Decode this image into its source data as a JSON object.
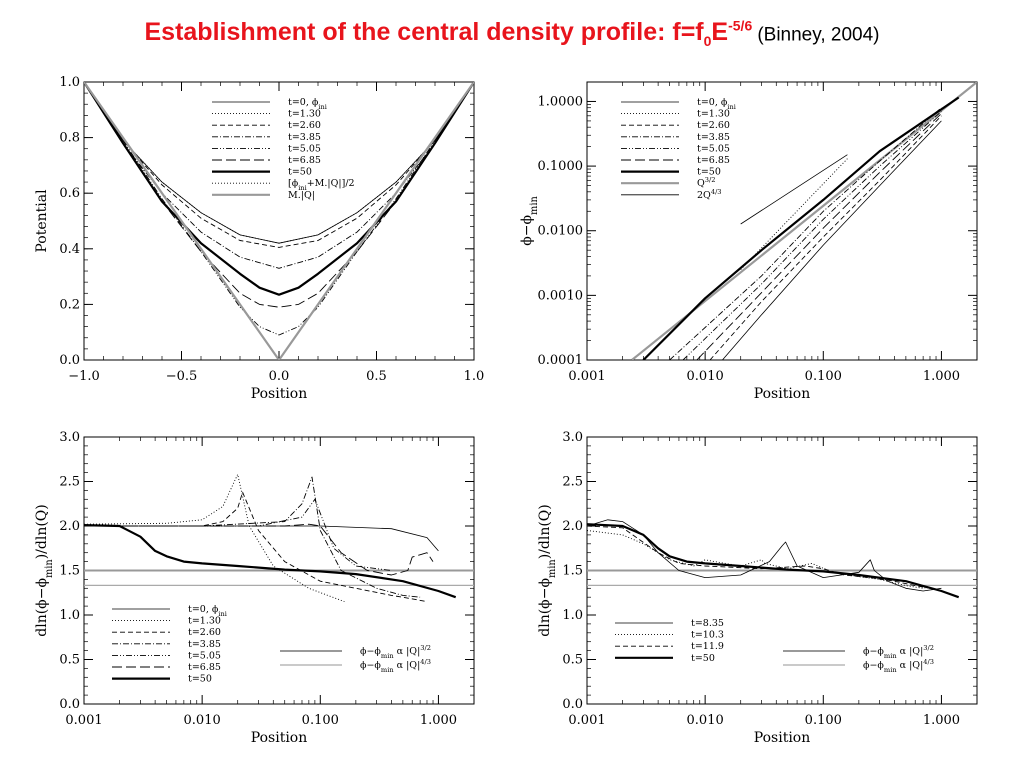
{
  "title": {
    "main": "Establishment of the central density profile: f=f",
    "sub": "0",
    "mid": "E",
    "sup": "-5/6",
    "cite": "(Binney, 2004)"
  },
  "chart_data": [
    {
      "id": "tl",
      "type": "line",
      "xscale": "linear",
      "yscale": "linear",
      "xlim": [
        -1,
        1
      ],
      "ylim": [
        0,
        1
      ],
      "xticks": [
        -1,
        -0.5,
        0,
        0.5,
        1
      ],
      "xticklabels": [
        "−1.0",
        "−0.5",
        "0.0",
        "0.5",
        "1.0"
      ],
      "yticks": [
        0,
        0.2,
        0.4,
        0.6,
        0.8,
        1.0
      ],
      "yticklabels": [
        "0.0",
        "0.2",
        "0.4",
        "0.6",
        "0.8",
        "1.0"
      ],
      "xlabel": "Position",
      "ylabel": "Potential",
      "legend": {
        "placement": "top-center",
        "entries": [
          {
            "label": "t=0, ϕini",
            "style": "thin"
          },
          {
            "label": "t=1.30",
            "style": "dot"
          },
          {
            "label": "t=2.60",
            "style": "dash"
          },
          {
            "label": "t=3.85",
            "style": "dashdot"
          },
          {
            "label": "t=5.05",
            "style": "dashdotdot"
          },
          {
            "label": "t=6.85",
            "style": "longdash"
          },
          {
            "label": "t=50",
            "style": "bold"
          },
          {
            "label": "[ϕini+M.|Q|]/2",
            "style": "dot"
          },
          {
            "label": "M.|Q|",
            "style": "gray"
          }
        ]
      },
      "series": [
        {
          "style": "thin",
          "x": [
            -1,
            -0.8,
            -0.6,
            -0.4,
            -0.2,
            0,
            0.2,
            0.4,
            0.6,
            0.8,
            1
          ],
          "y": [
            1.0,
            0.79,
            0.64,
            0.53,
            0.45,
            0.42,
            0.45,
            0.53,
            0.64,
            0.79,
            1.0
          ]
        },
        {
          "style": "dot",
          "x": [
            -1,
            -0.8,
            -0.6,
            -0.4,
            -0.2,
            0,
            0.2,
            0.4,
            0.6,
            0.8,
            1
          ],
          "y": [
            1.0,
            0.79,
            0.64,
            0.53,
            0.45,
            0.42,
            0.45,
            0.53,
            0.64,
            0.79,
            1.0
          ]
        },
        {
          "style": "dash",
          "x": [
            -1,
            -0.8,
            -0.6,
            -0.4,
            -0.2,
            0,
            0.2,
            0.4,
            0.6,
            0.8,
            1
          ],
          "y": [
            1.0,
            0.79,
            0.63,
            0.51,
            0.43,
            0.405,
            0.43,
            0.51,
            0.63,
            0.79,
            1.0
          ]
        },
        {
          "style": "dashdot",
          "x": [
            -1,
            -0.8,
            -0.6,
            -0.4,
            -0.2,
            0,
            0.2,
            0.4,
            0.6,
            0.8,
            1
          ],
          "y": [
            1.0,
            0.78,
            0.6,
            0.46,
            0.37,
            0.33,
            0.37,
            0.46,
            0.6,
            0.78,
            1.0
          ]
        },
        {
          "style": "longdash",
          "x": [
            -1,
            -0.8,
            -0.6,
            -0.4,
            -0.2,
            -0.1,
            0,
            0.1,
            0.2,
            0.4,
            0.6,
            0.8,
            1
          ],
          "y": [
            1.0,
            0.78,
            0.57,
            0.39,
            0.24,
            0.2,
            0.19,
            0.2,
            0.24,
            0.39,
            0.57,
            0.78,
            1.0
          ]
        },
        {
          "style": "dashdotdot",
          "x": [
            -1,
            -0.8,
            -0.6,
            -0.4,
            -0.2,
            -0.1,
            0,
            0.1,
            0.2,
            0.4,
            0.6,
            0.8,
            1
          ],
          "y": [
            1.0,
            0.79,
            0.58,
            0.39,
            0.19,
            0.12,
            0.09,
            0.12,
            0.19,
            0.39,
            0.58,
            0.79,
            1.0
          ]
        },
        {
          "style": "dot",
          "x": [
            -1,
            -0.5,
            -0.2,
            -0.05,
            0,
            0.05,
            0.2,
            0.5,
            1
          ],
          "y": [
            1.0,
            0.5,
            0.2,
            0.05,
            0.0,
            0.05,
            0.2,
            0.5,
            1.0
          ]
        },
        {
          "style": "bold",
          "x": [
            -1,
            -0.8,
            -0.6,
            -0.4,
            -0.2,
            -0.1,
            0,
            0.1,
            0.2,
            0.4,
            0.6,
            0.8,
            1
          ],
          "y": [
            1.0,
            0.78,
            0.57,
            0.42,
            0.31,
            0.26,
            0.235,
            0.26,
            0.31,
            0.42,
            0.57,
            0.78,
            1.0
          ]
        },
        {
          "style": "gray",
          "x": [
            -1,
            0,
            1
          ],
          "y": [
            1.0,
            0.0,
            1.0
          ]
        }
      ]
    },
    {
      "id": "tr",
      "type": "line",
      "xscale": "log",
      "yscale": "log",
      "xlim": [
        0.001,
        2
      ],
      "ylim": [
        0.0001,
        2
      ],
      "xticks": [
        0.001,
        0.01,
        0.1,
        1
      ],
      "xticklabels": [
        "0.001",
        "0.010",
        "0.100",
        "1.000"
      ],
      "yticks": [
        0.0001,
        0.001,
        0.01,
        0.1,
        1
      ],
      "yticklabels": [
        "0.0001",
        "0.0010",
        "0.0100",
        "0.1000",
        "1.0000"
      ],
      "xlabel": "Position",
      "ylabel": "ϕ−ϕmin",
      "legend": {
        "placement": "top-center",
        "entries": [
          {
            "label": "t=0, ϕini",
            "style": "thin"
          },
          {
            "label": "t=1.30",
            "style": "dot"
          },
          {
            "label": "t=2.60",
            "style": "dash"
          },
          {
            "label": "t=3.85",
            "style": "dashdot"
          },
          {
            "label": "t=5.05",
            "style": "dashdotdot"
          },
          {
            "label": "t=6.85",
            "style": "longdash"
          },
          {
            "label": "t=50",
            "style": "bold"
          },
          {
            "label": "Q3/2",
            "style": "gray"
          },
          {
            "label": "2Q4/3",
            "style": "thin"
          }
        ]
      },
      "series": [
        {
          "style": "gray",
          "x": [
            0.0024,
            2
          ],
          "y": [
            0.0001,
            2.0
          ]
        },
        {
          "style": "thin",
          "x": [
            0.02,
            0.16
          ],
          "y": [
            0.0127,
            0.15
          ]
        },
        {
          "style": "dot",
          "x": [
            0.02,
            0.16
          ],
          "y": [
            0.0025,
            0.13
          ]
        },
        {
          "style": "bold",
          "x": [
            0.003,
            0.01,
            0.03,
            0.1,
            0.3,
            1.4
          ],
          "y": [
            0.0001,
            0.0009,
            0.005,
            0.03,
            0.17,
            1.15
          ]
        },
        {
          "style": "dashdot",
          "x": [
            0.005,
            0.03,
            0.1,
            0.3,
            1.0
          ],
          "y": [
            0.0001,
            0.002,
            0.02,
            0.12,
            0.8
          ]
        },
        {
          "style": "dashdotdot",
          "x": [
            0.0065,
            0.03,
            0.1,
            0.3,
            1.0
          ],
          "y": [
            0.0001,
            0.0015,
            0.015,
            0.1,
            0.7
          ]
        },
        {
          "style": "longdash",
          "x": [
            0.0085,
            0.03,
            0.1,
            0.3,
            1.0
          ],
          "y": [
            0.0001,
            0.0011,
            0.011,
            0.08,
            0.65
          ]
        },
        {
          "style": "dash",
          "x": [
            0.011,
            0.03,
            0.1,
            0.3,
            1.0
          ],
          "y": [
            0.0001,
            0.0008,
            0.008,
            0.06,
            0.6
          ]
        },
        {
          "style": "thin",
          "x": [
            0.014,
            0.03,
            0.1,
            0.3,
            1.0
          ],
          "y": [
            0.0001,
            0.0005,
            0.006,
            0.05,
            0.5
          ]
        }
      ]
    },
    {
      "id": "bl",
      "type": "line",
      "xscale": "log",
      "yscale": "linear",
      "xlim": [
        0.001,
        2
      ],
      "ylim": [
        0,
        3
      ],
      "xticks": [
        0.001,
        0.01,
        0.1,
        1
      ],
      "xticklabels": [
        "0.001",
        "0.010",
        "0.100",
        "1.000"
      ],
      "yticks": [
        0,
        0.5,
        1,
        1.5,
        2,
        2.5,
        3
      ],
      "yticklabels": [
        "0.0",
        "0.5",
        "1.0",
        "1.5",
        "2.0",
        "2.5",
        "3.0"
      ],
      "xlabel": "Position",
      "ylabel": "dln(ϕ−ϕmin)/dln(Q)",
      "hlines": [
        {
          "y": 1.5,
          "style": "grayH"
        },
        {
          "y": 1.333,
          "style": "grayL"
        }
      ],
      "legend": {
        "placement": "bottom-left",
        "entries": [
          {
            "label": "t=0, ϕini",
            "style": "thin"
          },
          {
            "label": "t=1.30",
            "style": "dot"
          },
          {
            "label": "t=2.60",
            "style": "dash"
          },
          {
            "label": "t=3.85",
            "style": "dashdot"
          },
          {
            "label": "t=5.05",
            "style": "dashdotdot"
          },
          {
            "label": "t=6.85",
            "style": "longdash"
          },
          {
            "label": "t=50",
            "style": "bold"
          }
        ]
      },
      "legend2": {
        "placement": "bottom-right",
        "entries": [
          {
            "label": "ϕ−ϕmin α |Q|3/2",
            "style": "grayH"
          },
          {
            "label": "ϕ−ϕmin α |Q|4/3",
            "style": "grayL"
          }
        ]
      },
      "series": [
        {
          "style": "thin",
          "x": [
            0.001,
            0.01,
            0.1,
            0.4,
            0.8,
            1.0
          ],
          "y": [
            2.0,
            2.0,
            2.0,
            1.97,
            1.87,
            1.72
          ]
        },
        {
          "style": "dot",
          "x": [
            0.001,
            0.005,
            0.01,
            0.015,
            0.018,
            0.02,
            0.025,
            0.04,
            0.08,
            0.16
          ],
          "y": [
            2.02,
            2.03,
            2.07,
            2.22,
            2.45,
            2.58,
            2.0,
            1.55,
            1.3,
            1.15
          ]
        },
        {
          "style": "dash",
          "x": [
            0.001,
            0.01,
            0.015,
            0.02,
            0.022,
            0.03,
            0.05,
            0.1,
            0.2,
            0.4,
            0.5,
            0.8
          ],
          "y": [
            2.0,
            2.0,
            2.05,
            2.2,
            2.38,
            1.95,
            1.6,
            1.38,
            1.3,
            1.22,
            1.2,
            1.15
          ]
        },
        {
          "style": "dashdot",
          "x": [
            0.001,
            0.01,
            0.05,
            0.07,
            0.085,
            0.1,
            0.15,
            0.3,
            0.5,
            0.7
          ],
          "y": [
            2.0,
            2.0,
            2.05,
            2.25,
            2.55,
            1.95,
            1.5,
            1.3,
            1.22,
            1.2
          ]
        },
        {
          "style": "dashdotdot",
          "x": [
            0.001,
            0.03,
            0.07,
            0.09,
            0.11,
            0.13,
            0.2,
            0.4
          ],
          "y": [
            2.0,
            2.0,
            2.1,
            2.3,
            2.0,
            1.75,
            1.55,
            1.5
          ]
        },
        {
          "style": "longdash",
          "x": [
            0.001,
            0.05,
            0.08,
            0.1,
            0.15,
            0.25,
            0.4,
            0.55,
            0.6,
            0.8,
            0.9
          ],
          "y": [
            2.0,
            2.0,
            2.02,
            2.0,
            1.7,
            1.5,
            1.45,
            1.5,
            1.65,
            1.7,
            1.6
          ]
        },
        {
          "style": "bold",
          "x": [
            0.001,
            0.002,
            0.003,
            0.004,
            0.005,
            0.007,
            0.01,
            0.02,
            0.05,
            0.1,
            0.2,
            0.5,
            1.0,
            1.4
          ],
          "y": [
            2.01,
            2.0,
            1.88,
            1.72,
            1.66,
            1.6,
            1.58,
            1.55,
            1.51,
            1.49,
            1.46,
            1.38,
            1.27,
            1.2
          ]
        }
      ]
    },
    {
      "id": "br",
      "type": "line",
      "xscale": "log",
      "yscale": "linear",
      "xlim": [
        0.001,
        2
      ],
      "ylim": [
        0,
        3
      ],
      "xticks": [
        0.001,
        0.01,
        0.1,
        1
      ],
      "xticklabels": [
        "0.001",
        "0.010",
        "0.100",
        "1.000"
      ],
      "yticks": [
        0,
        0.5,
        1,
        1.5,
        2,
        2.5,
        3
      ],
      "yticklabels": [
        "0.0",
        "0.5",
        "1.0",
        "1.5",
        "2.0",
        "2.5",
        "3.0"
      ],
      "xlabel": "Position",
      "ylabel": "dln(ϕ−ϕmin)/dln(Q)",
      "hlines": [
        {
          "y": 1.5,
          "style": "grayH"
        },
        {
          "y": 1.333,
          "style": "grayL"
        }
      ],
      "legend": {
        "placement": "bottom-left",
        "entries": [
          {
            "label": "t=8.35",
            "style": "thin"
          },
          {
            "label": "t=10.3",
            "style": "dot"
          },
          {
            "label": "t=11.9",
            "style": "dash"
          },
          {
            "label": "t=50",
            "style": "bold"
          }
        ]
      },
      "legend2": {
        "placement": "bottom-right",
        "entries": [
          {
            "label": "ϕ−ϕmin α |Q|3/2",
            "style": "grayH"
          },
          {
            "label": "ϕ−ϕmin α |Q|4/3",
            "style": "grayL"
          }
        ]
      },
      "series": [
        {
          "style": "thin",
          "x": [
            0.001,
            0.0015,
            0.002,
            0.003,
            0.004,
            0.006,
            0.01,
            0.02,
            0.035,
            0.045,
            0.048,
            0.06,
            0.1,
            0.2,
            0.25,
            0.27,
            0.35,
            0.5,
            0.7,
            1.0
          ],
          "y": [
            2.0,
            2.07,
            2.05,
            1.9,
            1.7,
            1.5,
            1.42,
            1.45,
            1.6,
            1.78,
            1.82,
            1.55,
            1.42,
            1.48,
            1.62,
            1.5,
            1.38,
            1.3,
            1.27,
            1.3
          ]
        },
        {
          "style": "dot",
          "x": [
            0.001,
            0.002,
            0.003,
            0.005,
            0.008,
            0.01,
            0.012,
            0.02,
            0.03,
            0.032,
            0.05,
            0.08,
            0.09,
            0.12,
            0.2,
            0.3,
            0.5,
            0.7,
            0.8
          ],
          "y": [
            1.95,
            1.9,
            1.8,
            1.62,
            1.55,
            1.62,
            1.6,
            1.55,
            1.62,
            1.58,
            1.52,
            1.58,
            1.55,
            1.48,
            1.43,
            1.4,
            1.33,
            1.3,
            1.32
          ]
        },
        {
          "style": "dash",
          "x": [
            0.001,
            0.002,
            0.004,
            0.006,
            0.01,
            0.03,
            0.07,
            0.1,
            0.15,
            0.25,
            0.4,
            0.6,
            0.8
          ],
          "y": [
            2.0,
            1.98,
            1.7,
            1.58,
            1.55,
            1.52,
            1.55,
            1.52,
            1.45,
            1.42,
            1.38,
            1.33,
            1.3
          ]
        },
        {
          "style": "bold",
          "x": [
            0.001,
            0.002,
            0.003,
            0.004,
            0.005,
            0.007,
            0.01,
            0.02,
            0.05,
            0.1,
            0.2,
            0.5,
            1.0,
            1.4
          ],
          "y": [
            2.02,
            2.0,
            1.9,
            1.75,
            1.66,
            1.6,
            1.58,
            1.55,
            1.51,
            1.49,
            1.45,
            1.38,
            1.27,
            1.2
          ]
        }
      ]
    }
  ]
}
